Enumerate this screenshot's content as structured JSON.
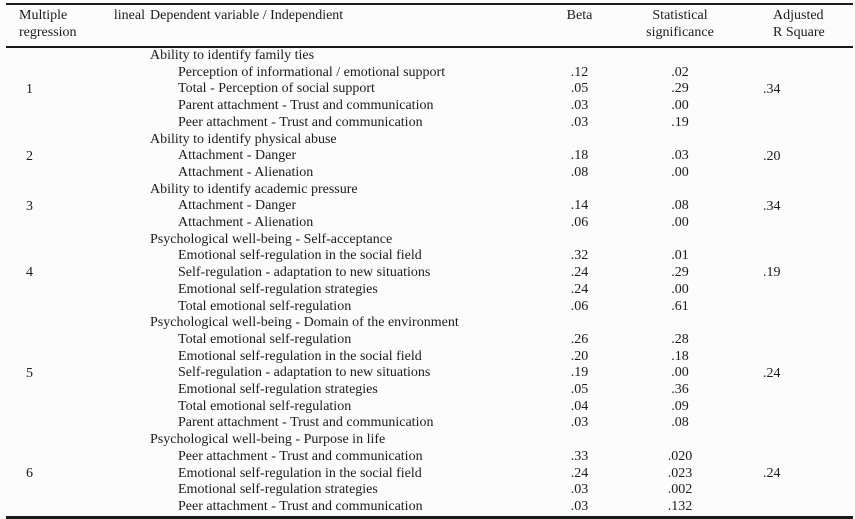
{
  "colors": {
    "text": "#1b1b1b",
    "background": "#fcfcfc",
    "rule": "#1a1a1a"
  },
  "table": {
    "headers": {
      "regression": "Multiple lineal regression",
      "dependent": "Dependent variable / Independient",
      "beta": "Beta",
      "significance": [
        "Statistical",
        "significance"
      ],
      "r_square": [
        "Adjusted",
        "R Square"
      ]
    },
    "blocks": [
      {
        "number": "1",
        "group": "Ability to identify family ties",
        "rows": [
          {
            "label": "Perception of informational / emotional support",
            "beta": ".12",
            "sig": ".02"
          },
          {
            "label": "Total - Perception of social support",
            "beta": ".05",
            "sig": ".29"
          },
          {
            "label": "Parent attachment - Trust and communication",
            "beta": ".03",
            "sig": ".00"
          },
          {
            "label": "Peer attachment - Trust and communication",
            "beta": ".03",
            "sig": ".19"
          }
        ],
        "r_square": ".34"
      },
      {
        "number": "2",
        "group": "Ability to identify physical abuse",
        "rows": [
          {
            "label": "Attachment - Danger",
            "beta": ".18",
            "sig": ".03"
          },
          {
            "label": "Attachment - Alienation",
            "beta": ".08",
            "sig": ".00"
          }
        ],
        "r_square": ".20"
      },
      {
        "number": "3",
        "group": "Ability to identify academic pressure",
        "rows": [
          {
            "label": "Attachment - Danger",
            "beta": ".14",
            "sig": ".08"
          },
          {
            "label": "Attachment - Alienation",
            "beta": ".06",
            "sig": ".00"
          }
        ],
        "r_square": ".34"
      },
      {
        "number": "4",
        "group": "Psychological well-being - Self-acceptance",
        "rows": [
          {
            "label": "Emotional self-regulation in the social field",
            "beta": ".32",
            "sig": ".01"
          },
          {
            "label": "Self-regulation - adaptation to new situations",
            "beta": ".24",
            "sig": ".29"
          },
          {
            "label": "Emotional self-regulation strategies",
            "beta": ".24",
            "sig": ".00"
          },
          {
            "label": "Total emotional self-regulation",
            "beta": ".06",
            "sig": ".61"
          }
        ],
        "r_square": ".19"
      },
      {
        "number": "5",
        "group": "Psychological well-being - Domain of the environment",
        "rows": [
          {
            "label": "Total emotional self-regulation",
            "beta": ".26",
            "sig": ".28"
          },
          {
            "label": "Emotional self-regulation in the social field",
            "beta": ".20",
            "sig": ".18"
          },
          {
            "label": "Self-regulation - adaptation to new situations",
            "beta": ".19",
            "sig": ".00"
          },
          {
            "label": "Emotional self-regulation strategies",
            "beta": ".05",
            "sig": ".36"
          },
          {
            "label": "Total emotional self-regulation",
            "beta": ".04",
            "sig": ".09"
          },
          {
            "label": "Parent attachment - Trust and communication",
            "beta": ".03",
            "sig": ".08"
          }
        ],
        "r_square": ".24"
      },
      {
        "number": "6",
        "group": "Psychological well-being - Purpose in life",
        "rows": [
          {
            "label": "Peer attachment - Trust and communication",
            "beta": ".33",
            "sig": ".020"
          },
          {
            "label": "Emotional self-regulation in the social field",
            "beta": ".24",
            "sig": ".023"
          },
          {
            "label": "Emotional self-regulation strategies",
            "beta": ".03",
            "sig": ".002"
          },
          {
            "label": "Peer attachment - Trust and communication",
            "beta": ".03",
            "sig": ".132"
          }
        ],
        "r_square": ".24"
      }
    ]
  }
}
